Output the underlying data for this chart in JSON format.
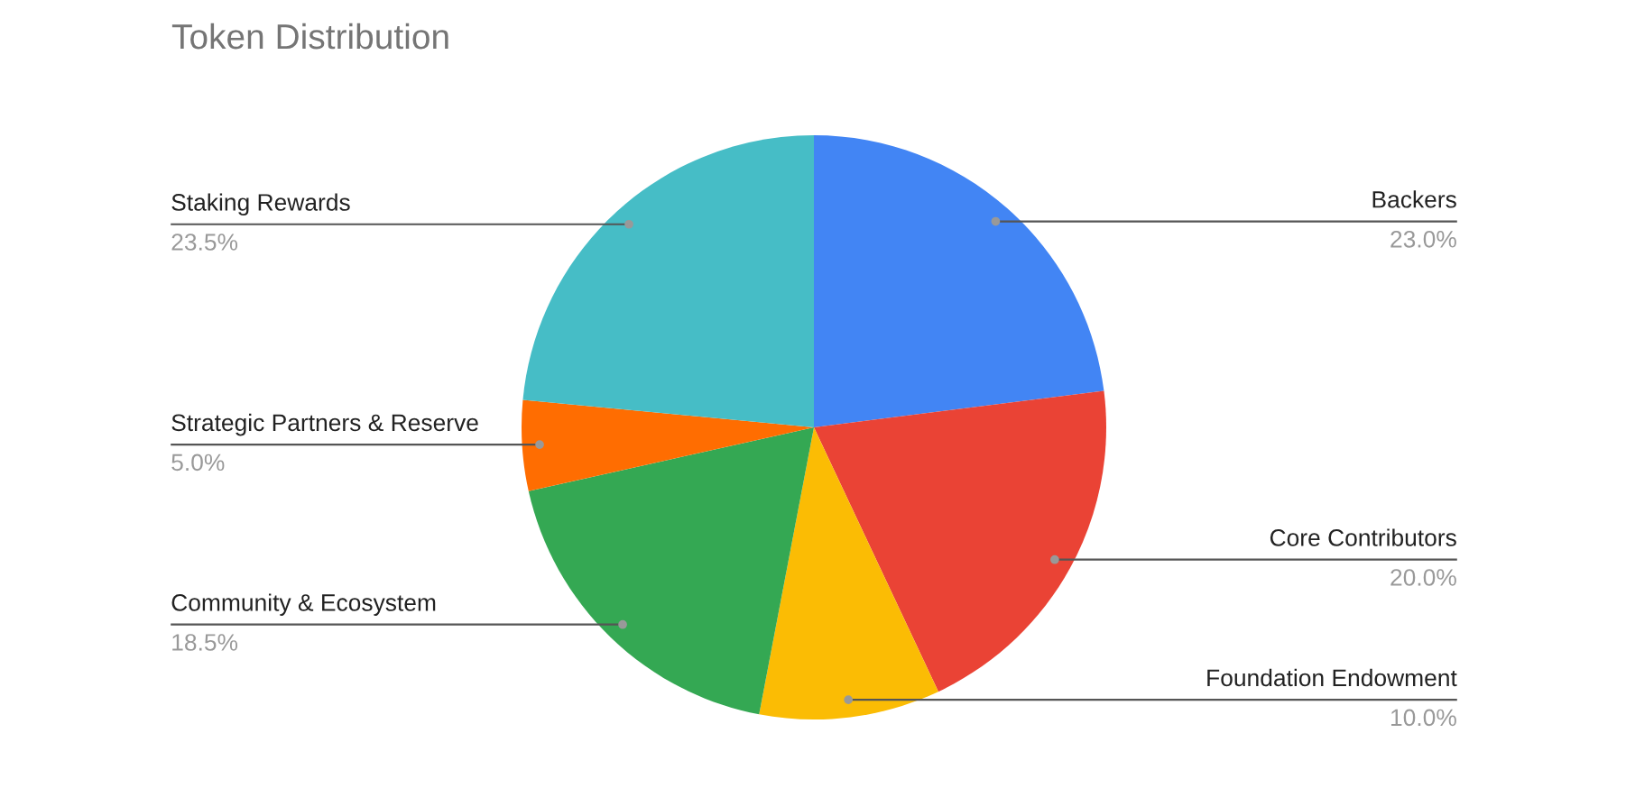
{
  "chart_data": {
    "type": "pie",
    "title": "Token Distribution",
    "categories": [
      "Backers",
      "Core Contributors",
      "Foundation Endowment",
      "Community & Ecosystem",
      "Strategic Partners & Reserve",
      "Staking Rewards"
    ],
    "values": [
      23.0,
      20.0,
      10.0,
      18.5,
      5.0,
      23.5
    ],
    "value_labels": [
      "23.0%",
      "20.0%",
      "10.0%",
      "18.5%",
      "5.0%",
      "23.5%"
    ],
    "colors": [
      "#4285f4",
      "#ea4335",
      "#fbbc04",
      "#34a853",
      "#ff6d01",
      "#46bdc6"
    ],
    "legend": false
  }
}
